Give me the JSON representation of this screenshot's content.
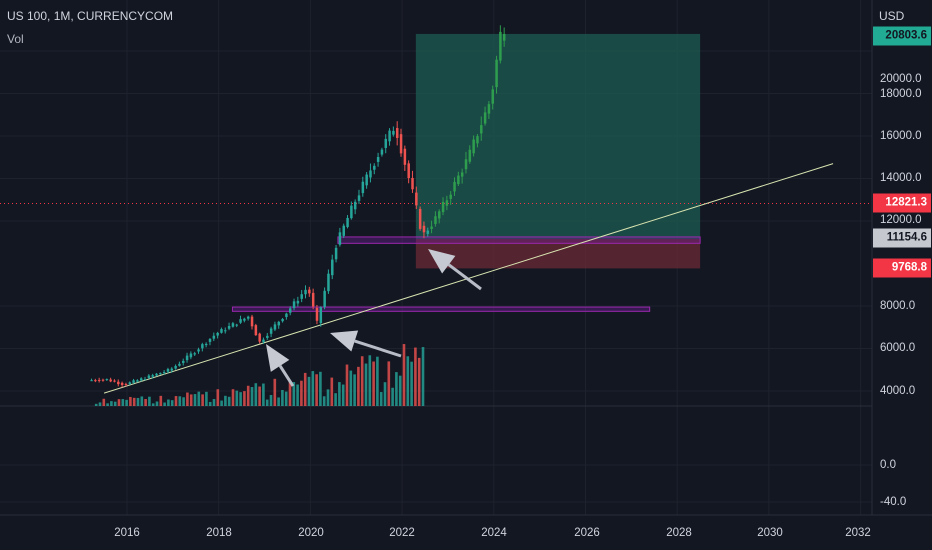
{
  "header": {
    "symbol_line": "US 100, 1M, CURRENCYCOM",
    "volume_label": "Vol"
  },
  "price_axis": {
    "unit": "USD",
    "ticks": [
      "20000.0",
      "18000.0",
      "16000.0",
      "14000.0",
      "12000.0",
      "8000.0",
      "6000.0",
      "4000.0"
    ],
    "volume_ticks": [
      "0.0",
      "-40.0"
    ]
  },
  "time_axis": {
    "ticks": [
      "2016",
      "2018",
      "2020",
      "2022",
      "2024",
      "2026",
      "2028",
      "2030",
      "2032"
    ]
  },
  "badges": {
    "last_price": "20803.6",
    "target_entry": "12821.3",
    "current_price": "11154.6",
    "stop_level": "9768.8"
  },
  "colors": {
    "background": "#131722",
    "up_candle": "#26a69a",
    "down_candle": "#ef5350",
    "projection_up": "#2e9d4e",
    "target_zone": "#1d5c52",
    "stop_zone": "#6b2a35",
    "zone_outline": "#9c27b0",
    "trendline": "#d8e4b0",
    "badge_red": "#f23645",
    "badge_green": "#22ab94",
    "badge_grey": "#c6c8cf"
  },
  "chart_data": {
    "type": "candlestick",
    "interval": "1M",
    "ylim": [
      3000,
      21000
    ],
    "xlim": [
      2015.0,
      2032.2
    ],
    "price_path": [
      [
        2015.2,
        4500
      ],
      [
        2015.6,
        4550
      ],
      [
        2016.0,
        4300
      ],
      [
        2016.5,
        4650
      ],
      [
        2017.0,
        5000
      ],
      [
        2017.5,
        5800
      ],
      [
        2018.0,
        6700
      ],
      [
        2018.7,
        7500
      ],
      [
        2018.95,
        6300
      ],
      [
        2019.5,
        7600
      ],
      [
        2020.0,
        8900
      ],
      [
        2020.2,
        7200
      ],
      [
        2020.6,
        10800
      ],
      [
        2021.0,
        12800
      ],
      [
        2021.5,
        15000
      ],
      [
        2021.9,
        16500
      ],
      [
        2022.3,
        13200
      ],
      [
        2022.5,
        11300
      ],
      [
        2022.75,
        12000
      ],
      [
        2023.0,
        12900
      ],
      [
        2023.5,
        15000
      ],
      [
        2024.0,
        17800
      ],
      [
        2024.2,
        20800
      ]
    ],
    "volume_bars_up": [
      18,
      30,
      22,
      40,
      35,
      55,
      48,
      60,
      70,
      65
    ],
    "volume_bars_down": [
      60,
      55,
      70,
      62,
      50,
      66,
      58,
      72
    ],
    "trendline": {
      "from": [
        2015.5,
        3900
      ],
      "to": [
        2031.4,
        14700
      ]
    },
    "horizontal_line": 12821.3,
    "zones": [
      {
        "name": "support-2018",
        "x": [
          2018.3,
          2027.4
        ],
        "y": [
          7750,
          7950
        ]
      },
      {
        "name": "support-2021",
        "x": [
          2020.6,
          2028.5
        ],
        "y": [
          10950,
          11250
        ]
      }
    ],
    "long_position": {
      "x": [
        2022.3,
        2028.5
      ],
      "entry": 11154.6,
      "target": 20803.6,
      "stop": 9768.8
    }
  }
}
